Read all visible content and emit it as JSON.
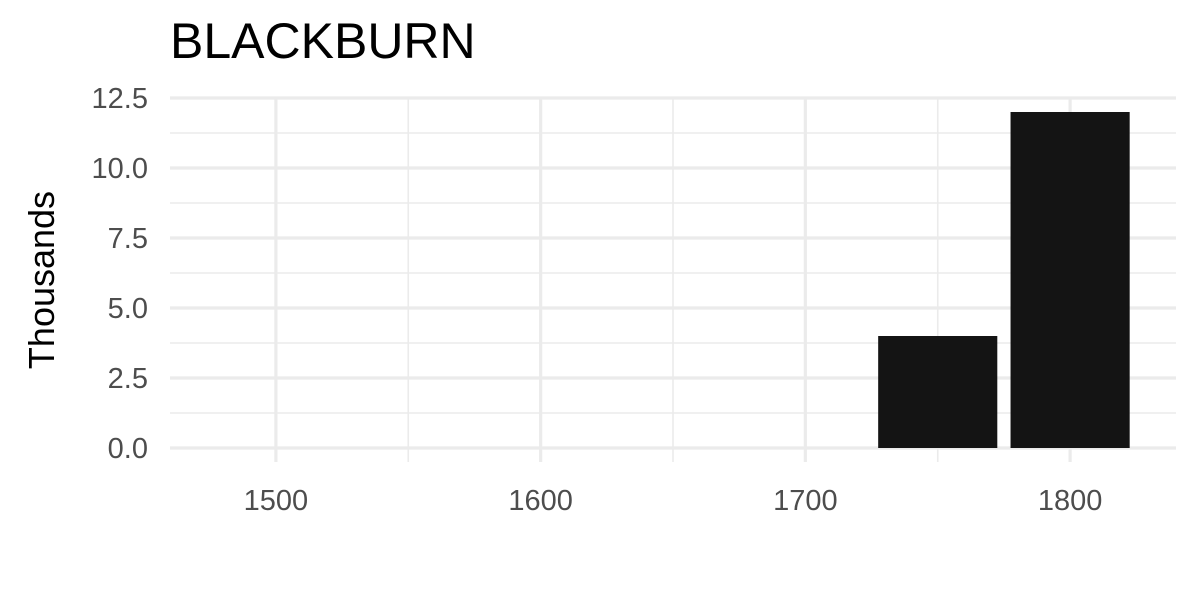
{
  "chart_data": {
    "type": "bar",
    "title": "BLACKBURN",
    "xlabel": "",
    "ylabel": "Thousands",
    "x": [
      1750,
      1800
    ],
    "values": [
      4.0,
      12.0
    ],
    "bar_width": 45,
    "xlim": [
      1460,
      1840
    ],
    "ylim": [
      0,
      12.5
    ],
    "x_ticks": [
      1500,
      1600,
      1700,
      1800
    ],
    "x_minor_ticks": [
      1550,
      1650,
      1750
    ],
    "y_ticks": [
      0,
      2.5,
      5,
      7.5,
      10,
      12.5
    ],
    "y_tick_labels": [
      "0.0",
      "2.5",
      "5.0",
      "7.5",
      "10.0",
      "12.5"
    ],
    "y_minor_ticks": [
      1.25,
      3.75,
      6.25,
      8.75,
      11.25
    ],
    "grid": true,
    "bar_color": "#141414",
    "grid_color": "#ebebeb"
  }
}
